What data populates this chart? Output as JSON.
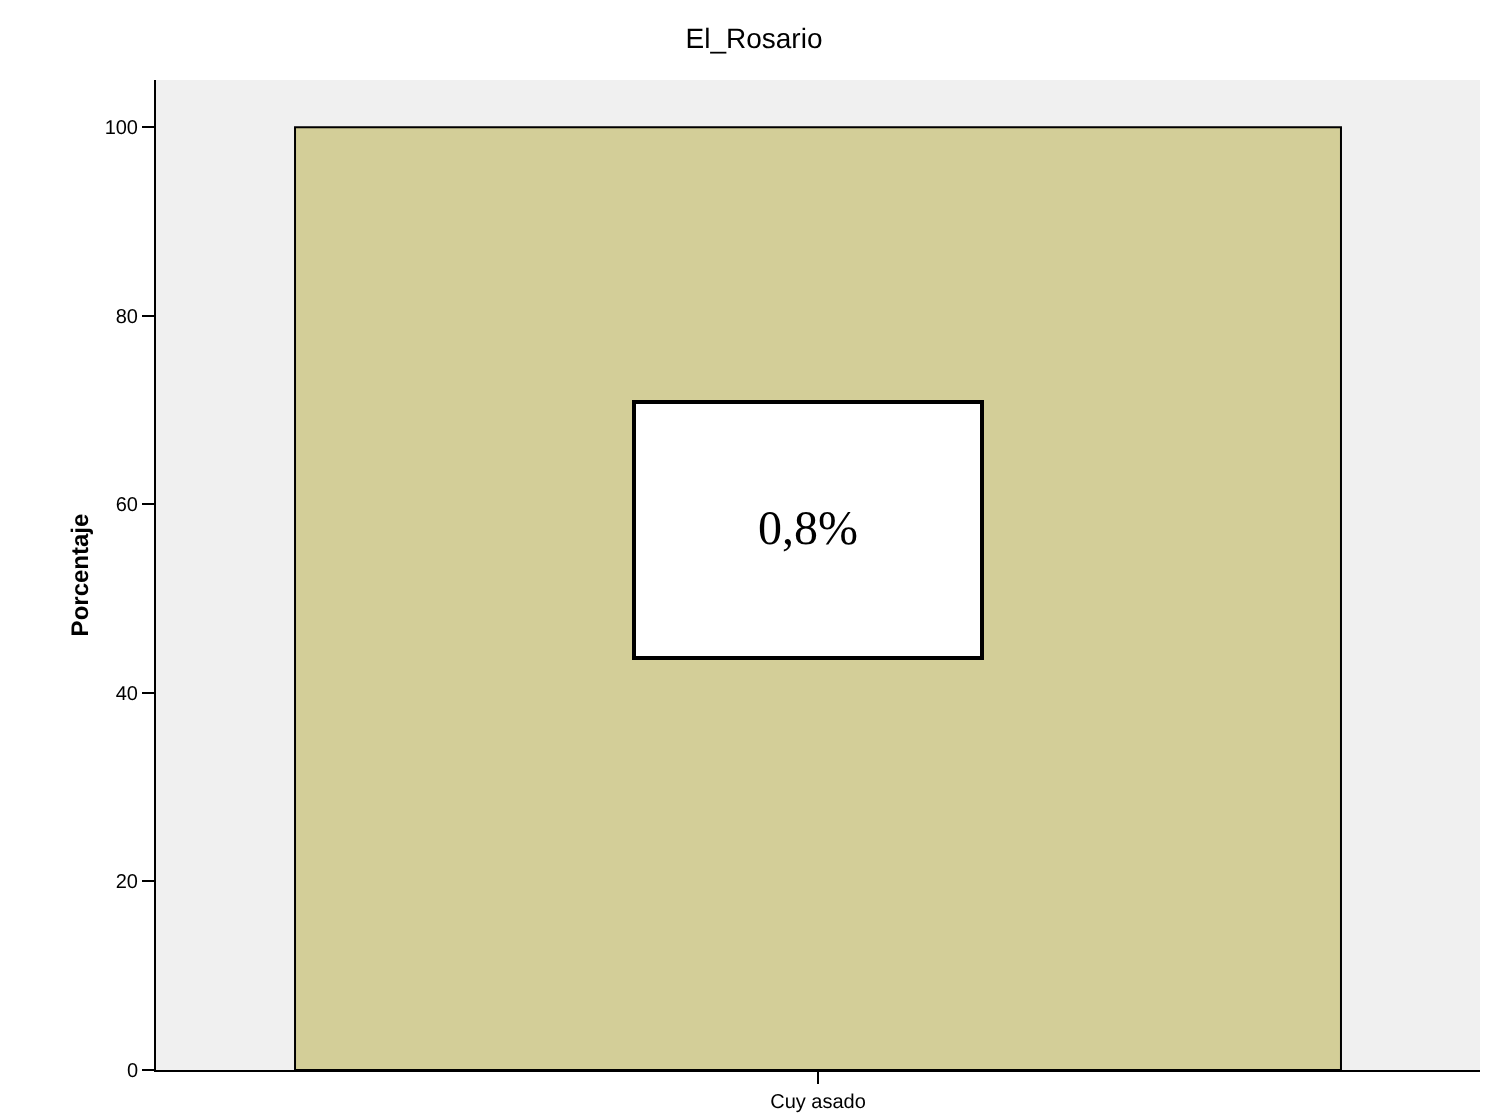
{
  "chart_data": {
    "type": "bar",
    "title": "El_Rosario",
    "ylabel": "Porcentaje",
    "categories": [
      "Cuy asado"
    ],
    "values": [
      100
    ],
    "color": "#d3ce98",
    "ylim": [
      0,
      105
    ],
    "yticks": [
      0,
      20,
      40,
      60,
      80,
      100
    ],
    "grid": false,
    "legend": false,
    "annotations": [
      "0,8%"
    ]
  }
}
